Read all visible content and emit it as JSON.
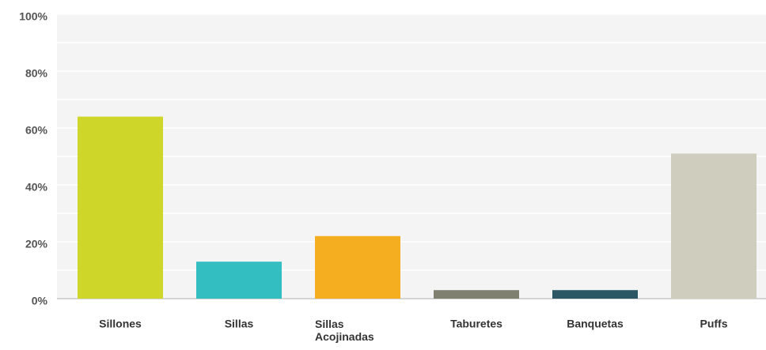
{
  "chart_data": {
    "type": "bar",
    "categories": [
      "Sillones",
      "Sillas",
      "Sillas Acojinadas",
      "Taburetes",
      "Banquetas",
      "Puffs"
    ],
    "values": [
      64,
      13,
      22,
      3,
      3,
      51
    ],
    "colors": [
      "#cfd62a",
      "#33bfc1",
      "#f5ae20",
      "#7f8070",
      "#2b5663",
      "#cfcdbe"
    ],
    "ylim": [
      0,
      100
    ],
    "yticks": [
      {
        "value": 0,
        "label": "0%"
      },
      {
        "value": 20,
        "label": "20%"
      },
      {
        "value": 40,
        "label": "40%"
      },
      {
        "value": 60,
        "label": "60%"
      },
      {
        "value": 80,
        "label": "80%"
      },
      {
        "value": 100,
        "label": "100%"
      }
    ],
    "yminorticks": [
      10,
      30,
      50,
      70,
      90
    ],
    "grid": true
  }
}
